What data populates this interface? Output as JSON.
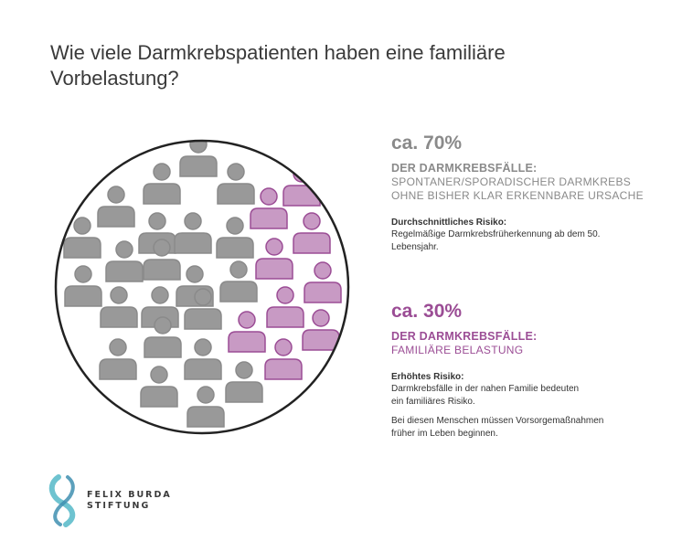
{
  "title": "Wie viele Darmkrebspatienten haben eine familiäre Vorbelastung?",
  "colors": {
    "grey": "#999999",
    "grey_stroke": "#8a8a8a",
    "purple": "#c89ac4",
    "purple_stroke": "#9b4d95",
    "accent_logo": "#6ec3d0"
  },
  "figure": {
    "icon": "person-icon",
    "total_people": 37,
    "grey_people": 26,
    "purple_people": 11
  },
  "stat_sporadic": {
    "percent": "ca. 70%",
    "heading": "DER DARMKREBSFÄLLE:",
    "line1": "SPONTANER/SPORADISCHER DARMKREBS",
    "line2": "OHNE BISHER KLAR ERKENNBARE URSACHE",
    "risk_label": "Durchschnittliches Risiko:",
    "risk_line1": "Regelmäßige Darmkrebsfrüherkennung ab dem 50.",
    "risk_line2": "Lebensjahr."
  },
  "stat_familial": {
    "percent": "ca. 30%",
    "heading": "DER DARMKREBSFÄLLE:",
    "line1": "FAMILIÄRE BELASTUNG",
    "risk_label": "Erhöhtes Risiko:",
    "risk_line1": "Darmkrebsfälle in der nahen Familie bedeuten",
    "risk_line2": "ein familiäres Risiko.",
    "extra_line1": "Bei diesen Menschen müssen Vorsorgemaßnahmen",
    "extra_line2": "früher im Leben beginnen."
  },
  "logo": {
    "line1": "FELIX BURDA",
    "line2": "STIFTUNG",
    "icon": "ribbon-icon"
  }
}
